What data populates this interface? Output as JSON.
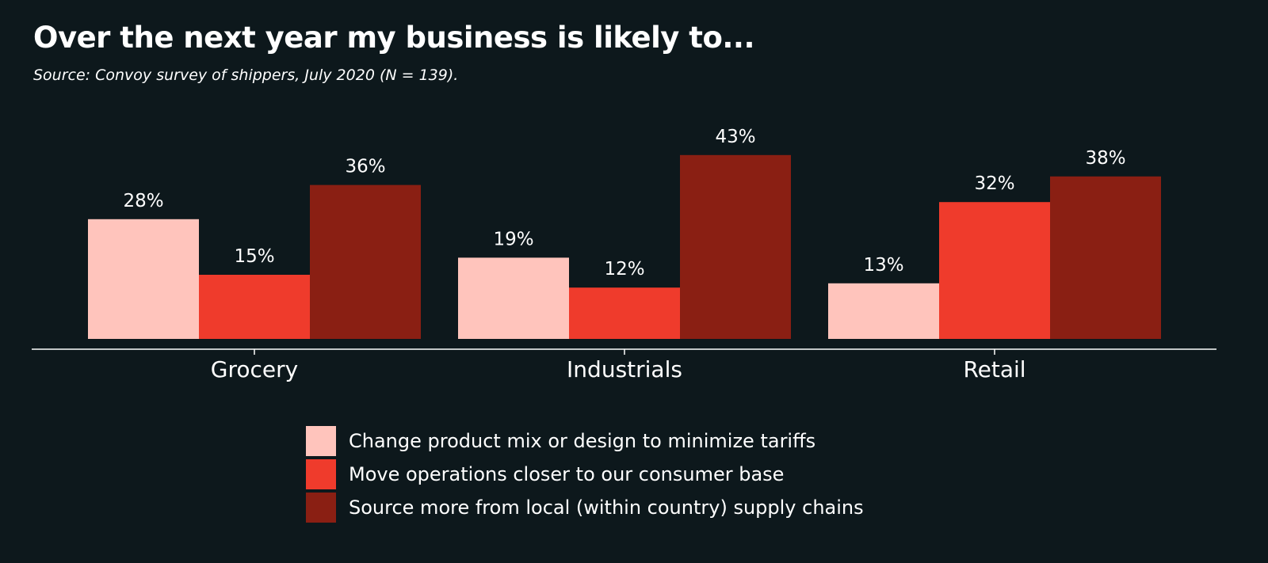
{
  "title": "Over the next year my business is likely to...",
  "subtitle": "Source: Convoy survey of shippers, July 2020 (N = 139).",
  "colors": {
    "background": "#0d181c",
    "text": "#ffffff",
    "axis": "#ffffff"
  },
  "chart_data": {
    "type": "bar",
    "categories": [
      "Grocery",
      "Industrials",
      "Retail"
    ],
    "series": [
      {
        "name": "Change product mix or design to minimize tariffs",
        "values": [
          28,
          19,
          13
        ],
        "labels": [
          "28%",
          "19%",
          "13%"
        ],
        "color": "#ffc4bc"
      },
      {
        "name": "Move operations closer to our consumer base",
        "values": [
          15,
          12,
          32
        ],
        "labels": [
          "15%",
          "12%",
          "32%"
        ],
        "color": "#ef3b2c"
      },
      {
        "name": "Source more from local (within country) supply chains",
        "values": [
          36,
          43,
          38
        ],
        "labels": [
          "36%",
          "43%",
          "38%"
        ],
        "color": "#8a1f13"
      }
    ],
    "xlabel": "",
    "ylabel": "",
    "ylim": [
      0,
      50
    ],
    "grid": false,
    "legend": "bottom-center"
  }
}
